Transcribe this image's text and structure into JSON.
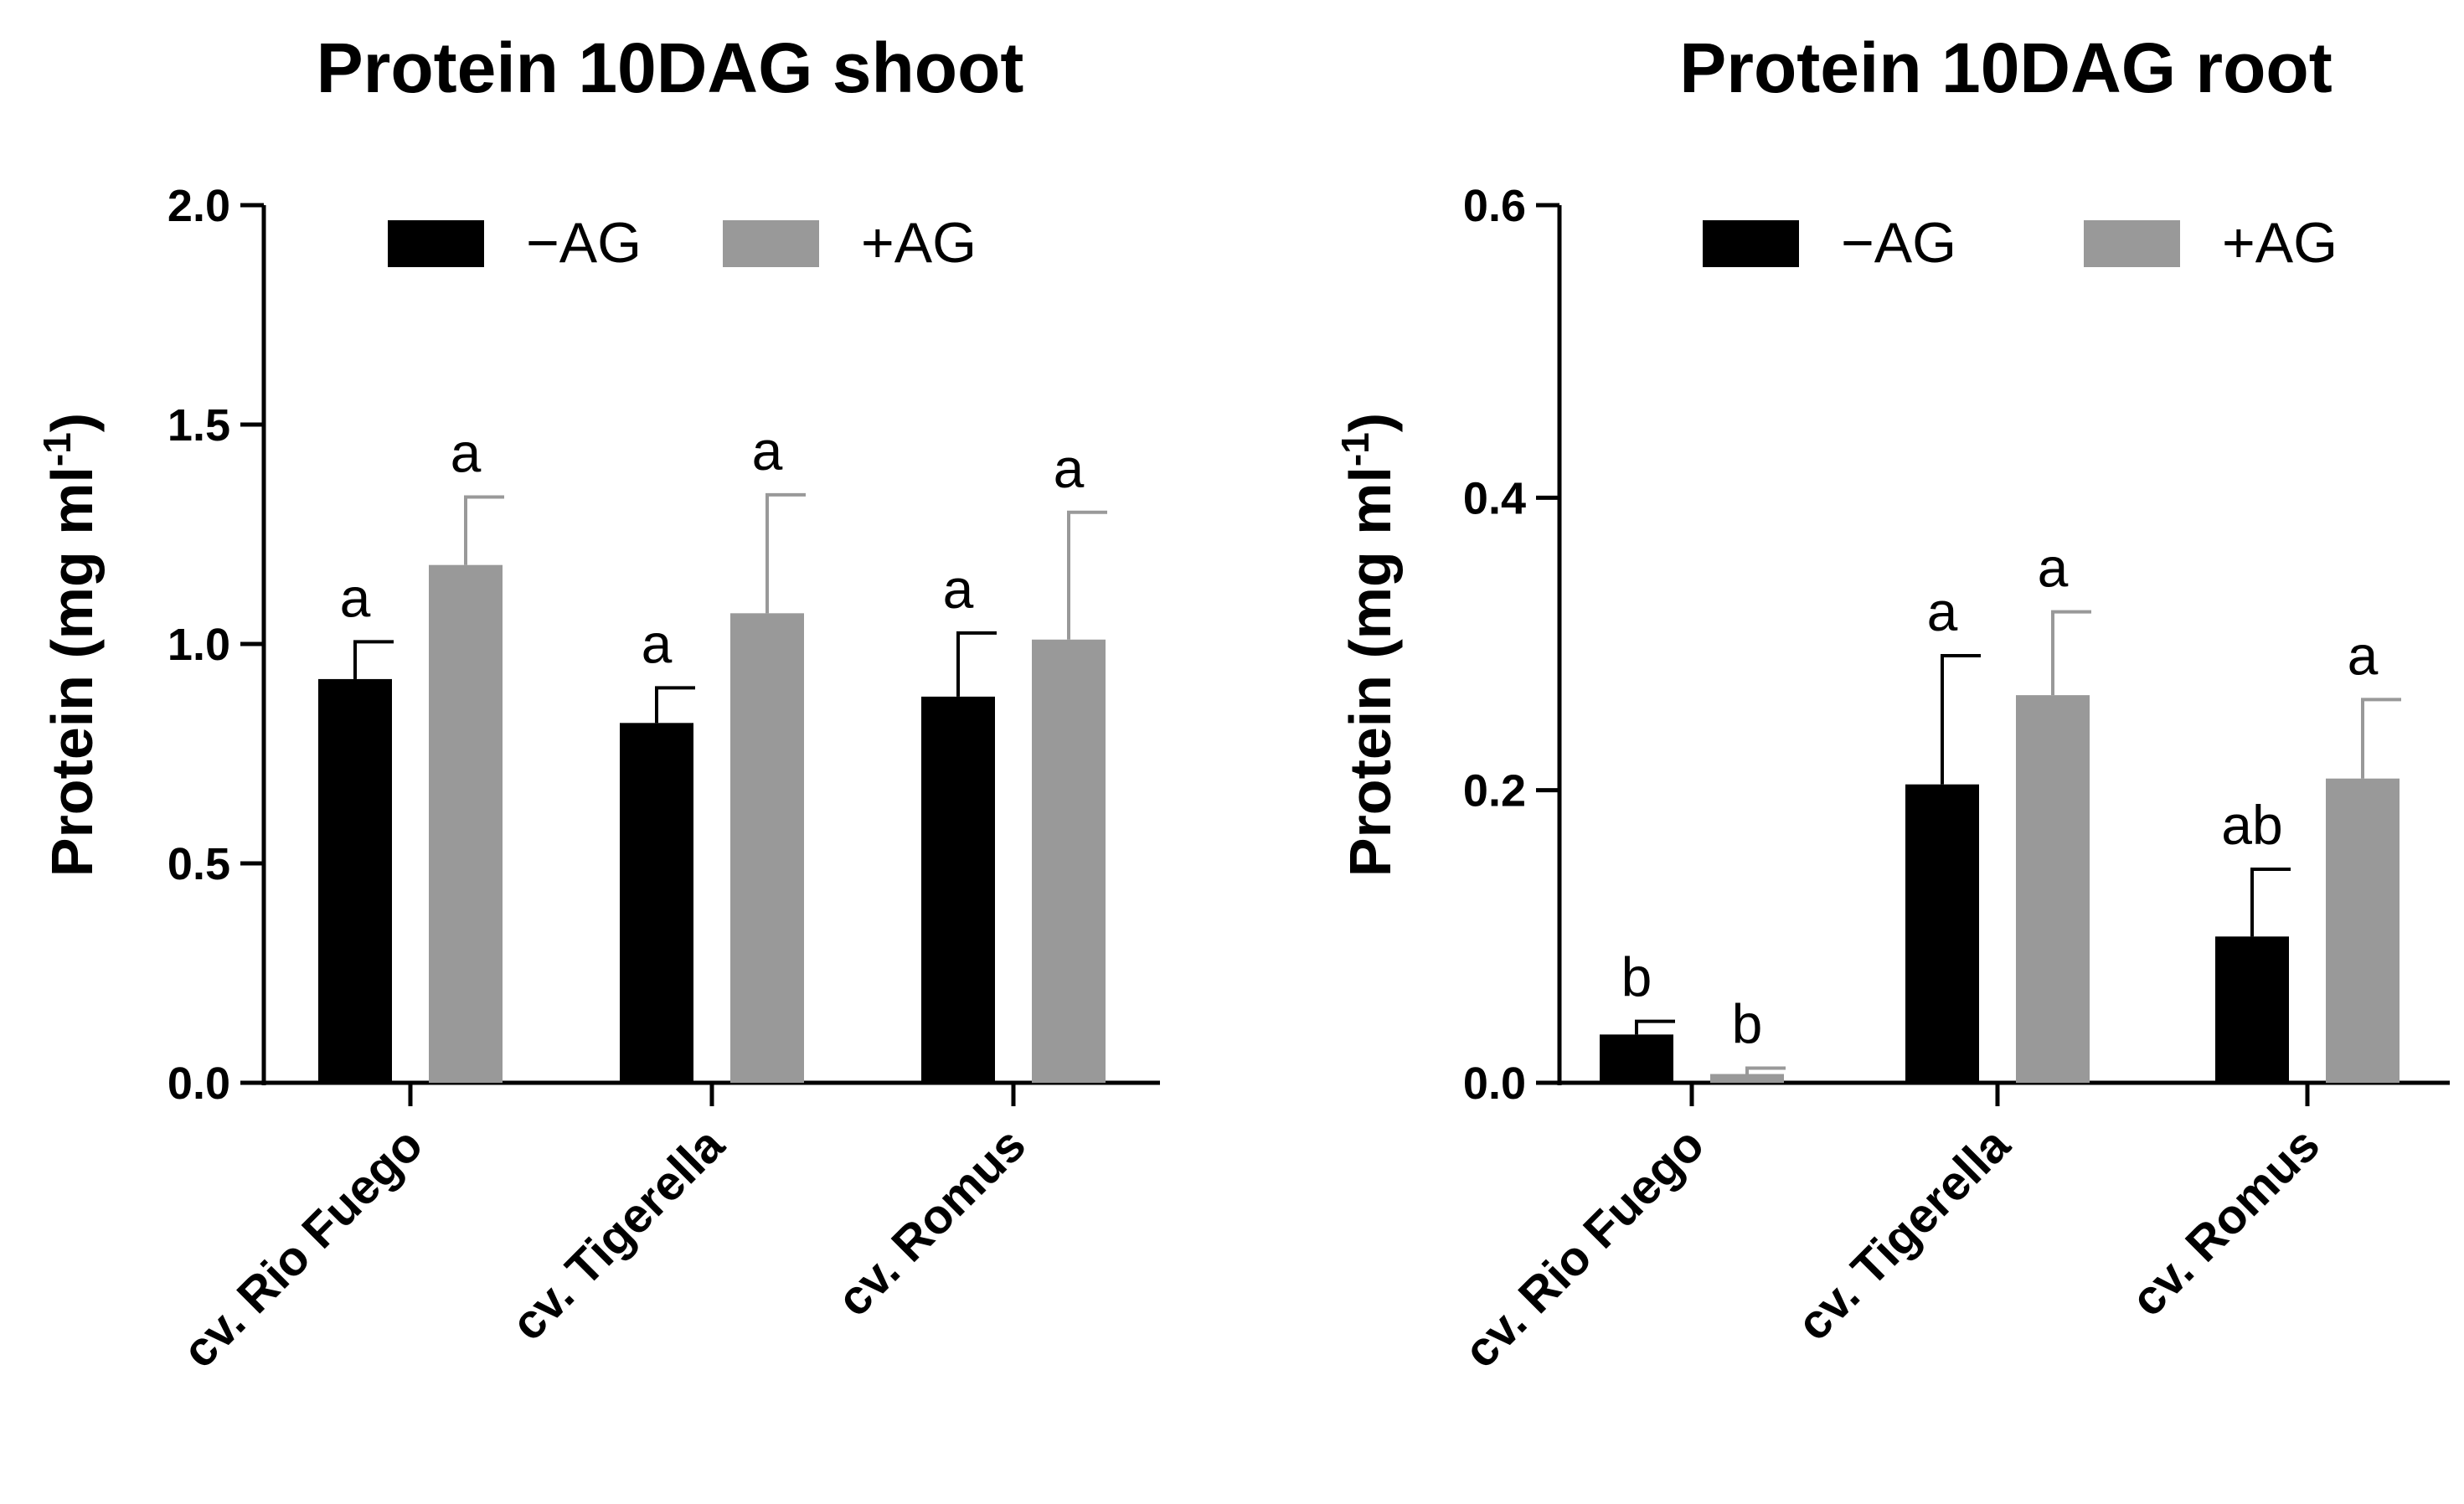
{
  "chart_data": [
    {
      "type": "bar",
      "title": "Protein 10DAG shoot",
      "ylabel_main": "Protein (mg ml",
      "ylabel_sup": "-1",
      "ylabel_end": ")",
      "ylim": [
        0,
        2.0
      ],
      "yticks": [
        0.0,
        0.5,
        1.0,
        1.5,
        2.0
      ],
      "ytick_labels": [
        "0.0",
        "0.5",
        "1.0",
        "1.5",
        "2.0"
      ],
      "categories": [
        "cv. Rio Fuego",
        "cv. Tigerella",
        "cv. Romus"
      ],
      "series": [
        {
          "name": "−AG",
          "color": "#000000",
          "values": [
            0.92,
            0.82,
            0.88
          ],
          "errors": [
            0.085,
            0.08,
            0.145
          ],
          "labels": [
            "a",
            "a",
            "a"
          ]
        },
        {
          "name": "+AG",
          "color": "#999999",
          "values": [
            1.18,
            1.07,
            1.01
          ],
          "errors": [
            0.155,
            0.27,
            0.29
          ],
          "labels": [
            "a",
            "a",
            "a"
          ]
        }
      ]
    },
    {
      "type": "bar",
      "title": "Protein 10DAG root",
      "ylabel_main": "Protein (mg ml",
      "ylabel_sup": "-1",
      "ylabel_end": ")",
      "ylim": [
        0,
        0.6
      ],
      "yticks": [
        0.0,
        0.2,
        0.4,
        0.6
      ],
      "ytick_labels": [
        "0.0",
        "0.2",
        "0.4",
        "0.6"
      ],
      "categories": [
        "cv. Rio Fuego",
        "cv. Tigerella",
        "cv. Romus"
      ],
      "series": [
        {
          "name": "−AG",
          "color": "#000000",
          "values": [
            0.033,
            0.204,
            0.1
          ],
          "errors": [
            0.009,
            0.088,
            0.046
          ],
          "labels": [
            "b",
            "a",
            "ab"
          ]
        },
        {
          "name": "+AG",
          "color": "#999999",
          "values": [
            0.006,
            0.265,
            0.208
          ],
          "errors": [
            0.004,
            0.057,
            0.054
          ],
          "labels": [
            "b",
            "a",
            "a"
          ]
        }
      ]
    }
  ]
}
